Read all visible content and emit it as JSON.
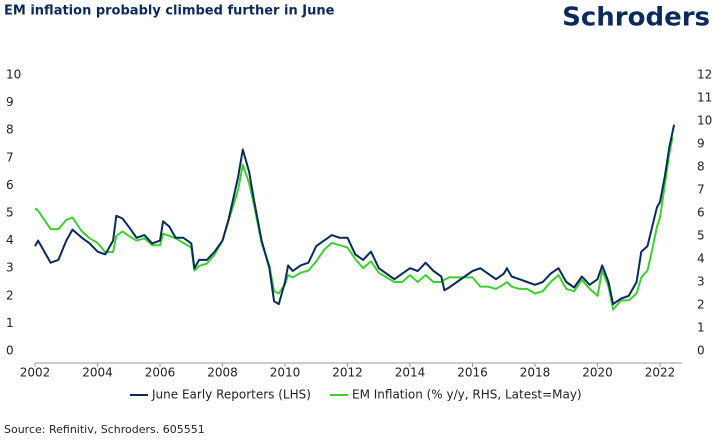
{
  "brand": "Schroders",
  "source": "Source: Refinitiv, Schroders. 605551",
  "chart_data": {
    "type": "line",
    "title": "EM inflation probably climbed further in June",
    "xlim": [
      2002,
      2022.7
    ],
    "xticks": [
      2002,
      2004,
      2006,
      2008,
      2010,
      2012,
      2014,
      2016,
      2018,
      2020,
      2022
    ],
    "ylim": [
      0,
      10
    ],
    "yticks": [
      0,
      1,
      2,
      3,
      4,
      5,
      6,
      7,
      8,
      9,
      10
    ],
    "y2lim": [
      0,
      12
    ],
    "y2ticks": [
      0,
      1,
      2,
      3,
      4,
      5,
      6,
      7,
      8,
      9,
      10,
      11,
      12
    ],
    "grid": false,
    "legend": "bottom",
    "series": [
      {
        "name": "June Early Reporters (LHS)",
        "color": "#0b2a5b",
        "axis": "y",
        "x": [
          2002.0,
          2002.1,
          2002.25,
          2002.5,
          2002.75,
          2003.0,
          2003.2,
          2003.5,
          2003.75,
          2004.0,
          2004.25,
          2004.5,
          2004.6,
          2004.8,
          2005.0,
          2005.25,
          2005.5,
          2005.75,
          2006.0,
          2006.1,
          2006.3,
          2006.5,
          2006.75,
          2007.0,
          2007.1,
          2007.25,
          2007.5,
          2007.75,
          2008.0,
          2008.2,
          2008.5,
          2008.65,
          2008.85,
          2009.0,
          2009.25,
          2009.5,
          2009.65,
          2009.8,
          2010.0,
          2010.1,
          2010.25,
          2010.5,
          2010.75,
          2011.0,
          2011.25,
          2011.5,
          2011.75,
          2012.0,
          2012.25,
          2012.5,
          2012.75,
          2013.0,
          2013.25,
          2013.5,
          2013.75,
          2014.0,
          2014.25,
          2014.5,
          2014.75,
          2015.0,
          2015.1,
          2015.25,
          2015.5,
          2015.75,
          2016.0,
          2016.25,
          2016.5,
          2016.75,
          2017.0,
          2017.1,
          2017.25,
          2017.5,
          2017.75,
          2018.0,
          2018.25,
          2018.5,
          2018.75,
          2019.0,
          2019.25,
          2019.5,
          2019.75,
          2020.0,
          2020.15,
          2020.35,
          2020.5,
          2020.75,
          2021.0,
          2021.25,
          2021.4,
          2021.6,
          2021.75,
          2021.9,
          2022.0,
          2022.15,
          2022.3,
          2022.45
        ],
        "values": [
          3.8,
          4.0,
          3.7,
          3.2,
          3.3,
          4.0,
          4.4,
          4.1,
          3.9,
          3.6,
          3.5,
          4.0,
          4.9,
          4.8,
          4.5,
          4.1,
          4.2,
          3.9,
          4.0,
          4.7,
          4.5,
          4.1,
          4.1,
          3.9,
          3.0,
          3.3,
          3.3,
          3.6,
          4.0,
          4.8,
          6.3,
          7.3,
          6.5,
          5.5,
          4.0,
          3.0,
          1.8,
          1.7,
          2.5,
          3.1,
          2.9,
          3.1,
          3.2,
          3.8,
          4.0,
          4.2,
          4.1,
          4.1,
          3.5,
          3.3,
          3.6,
          3.0,
          2.8,
          2.6,
          2.8,
          3.0,
          2.9,
          3.2,
          2.9,
          2.7,
          2.2,
          2.3,
          2.5,
          2.7,
          2.9,
          3.0,
          2.8,
          2.6,
          2.8,
          3.0,
          2.7,
          2.6,
          2.5,
          2.4,
          2.5,
          2.8,
          3.0,
          2.5,
          2.3,
          2.7,
          2.4,
          2.6,
          3.1,
          2.5,
          1.7,
          1.9,
          2.0,
          2.5,
          3.6,
          3.8,
          4.5,
          5.2,
          5.4,
          6.3,
          7.4,
          8.2
        ]
      },
      {
        "name": "EM Inflation (% y/y, RHS, Latest=May)",
        "color": "#3ccf2e",
        "axis": "y2",
        "x": [
          2002.0,
          2002.1,
          2002.25,
          2002.5,
          2002.75,
          2003.0,
          2003.2,
          2003.5,
          2003.75,
          2004.0,
          2004.25,
          2004.5,
          2004.6,
          2004.8,
          2005.0,
          2005.25,
          2005.5,
          2005.75,
          2006.0,
          2006.1,
          2006.3,
          2006.5,
          2006.75,
          2007.0,
          2007.1,
          2007.25,
          2007.5,
          2007.75,
          2008.0,
          2008.2,
          2008.5,
          2008.65,
          2008.85,
          2009.0,
          2009.25,
          2009.5,
          2009.65,
          2009.8,
          2010.0,
          2010.1,
          2010.25,
          2010.5,
          2010.75,
          2011.0,
          2011.25,
          2011.5,
          2011.75,
          2012.0,
          2012.25,
          2012.5,
          2012.75,
          2013.0,
          2013.25,
          2013.5,
          2013.75,
          2014.0,
          2014.25,
          2014.5,
          2014.75,
          2015.0,
          2015.1,
          2015.25,
          2015.5,
          2015.75,
          2016.0,
          2016.25,
          2016.5,
          2016.75,
          2017.0,
          2017.1,
          2017.25,
          2017.5,
          2017.75,
          2018.0,
          2018.25,
          2018.5,
          2018.75,
          2019.0,
          2019.25,
          2019.5,
          2019.75,
          2020.0,
          2020.15,
          2020.35,
          2020.5,
          2020.75,
          2021.0,
          2021.25,
          2021.4,
          2021.6,
          2021.75,
          2021.9,
          2022.0,
          2022.15,
          2022.3,
          2022.4
        ],
        "values": [
          6.2,
          6.1,
          5.8,
          5.3,
          5.3,
          5.7,
          5.8,
          5.2,
          4.9,
          4.7,
          4.3,
          4.3,
          5.0,
          5.2,
          5.0,
          4.8,
          4.9,
          4.6,
          4.6,
          5.1,
          5.0,
          4.9,
          4.7,
          4.5,
          3.5,
          3.7,
          3.8,
          4.2,
          4.8,
          5.7,
          7.0,
          8.1,
          7.3,
          6.4,
          4.7,
          3.7,
          2.6,
          2.5,
          2.9,
          3.3,
          3.2,
          3.4,
          3.5,
          3.9,
          4.4,
          4.7,
          4.6,
          4.5,
          4.0,
          3.6,
          3.9,
          3.4,
          3.2,
          3.0,
          3.0,
          3.3,
          3.0,
          3.3,
          3.0,
          3.0,
          3.1,
          3.2,
          3.2,
          3.2,
          3.2,
          2.8,
          2.8,
          2.7,
          2.9,
          3.0,
          2.8,
          2.7,
          2.7,
          2.5,
          2.6,
          3.0,
          3.3,
          2.7,
          2.6,
          3.1,
          2.7,
          2.4,
          3.5,
          2.8,
          1.8,
          2.2,
          2.2,
          2.5,
          3.2,
          3.5,
          4.4,
          5.4,
          5.8,
          7.2,
          8.6,
          9.3
        ]
      }
    ]
  }
}
